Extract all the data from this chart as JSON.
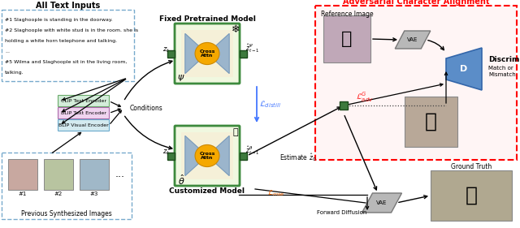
{
  "bg_color": "#ffffff",
  "text_inputs_title": "All Text Inputs",
  "text_inputs_lines": [
    "#1 Slaghoople is standing in the doorway.",
    "#2 Slaghoople with white stud is in the room. she is",
    "holding a white horn telephone and talking.",
    "...",
    "#5 Wilma and Slaghoople sit in the living room,",
    "talking."
  ],
  "encoder_boxes": [
    {
      "label": "CLIP Text Encoder",
      "color": "#d4edda",
      "border": "#6aaa6a"
    },
    {
      "label": "BLIP Text Encoder",
      "color": "#f0d4f0",
      "border": "#aa6aaa"
    },
    {
      "label": "BLIP Visual Encoder",
      "color": "#d4eaf0",
      "border": "#6aaacc"
    }
  ],
  "conditions_label": "Conditions",
  "fixed_model_title": "Fixed Pretrained Model",
  "customized_model_title": "Customized Model",
  "adversarial_title": "Adversarial Character Alignment",
  "discriminator_label": "Discriminator",
  "match_mismatch": "Match or\nMismatch",
  "reference_image_label": "Reference Image",
  "ground_truth_label": "Ground Truth",
  "forward_diffusion_label": "Forward Diffusion",
  "estimate_label": "Estimate $\\hat{z}_0$",
  "previous_images_label": "Previous Synthesized Images",
  "l_distill_color": "#4477ff",
  "l_adv_color": "#ff2222",
  "l_mse_color": "#ff6600",
  "green_sq": "#3d7a3d",
  "green_sq_dark": "#1a4a1a"
}
